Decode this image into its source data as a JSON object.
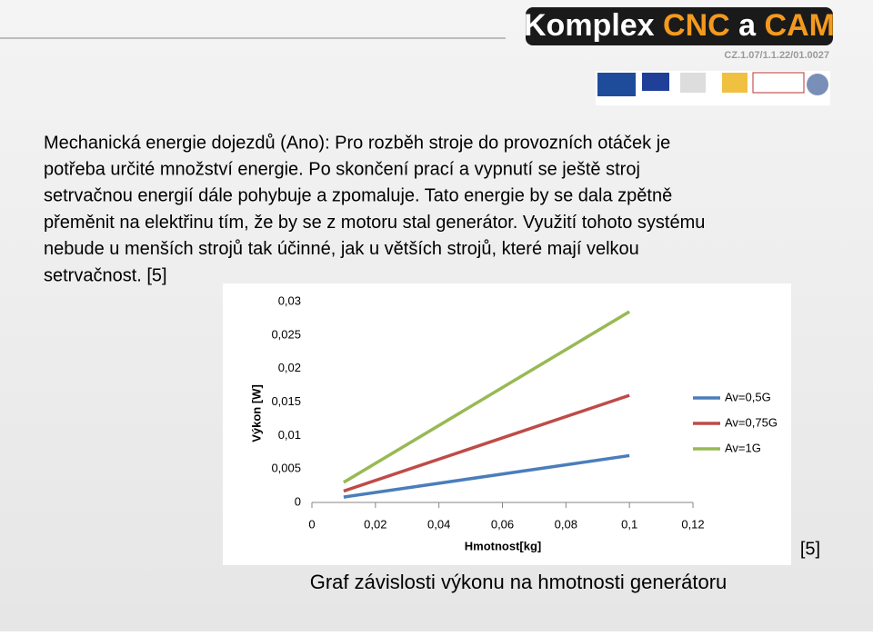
{
  "header": {
    "logo": [
      "Komplex",
      "CNC",
      "a",
      "CAM"
    ],
    "code": "CZ.1.07/1.1.22/01.0027"
  },
  "body": [
    "Mechanická energie dojezdů  (Ano):  Pro rozběh stroje do provozních otáček je",
    "potřeba určité množství energie. Po skončení prací a vypnutí se ještě stroj",
    "setrvačnou  energií  dále pohybuje a zpomaluje. Tato energie by se dala zpětně",
    "přeměnit na elektřinu tím, že by se z motoru stal generátor. Využití tohoto systému",
    "nebude u menších strojů tak účinné, jak u větších strojů, které mají velkou",
    "setrvačnost. [5]"
  ],
  "chart_data": {
    "type": "line",
    "x_label": "Hmotnost[kg]",
    "y_label": "Výkon [W]",
    "x": [
      0.01,
      0.1
    ],
    "series": [
      {
        "name": "Av=0,5G",
        "color": "#4a7ebb",
        "values": [
          0.0008,
          0.007
        ]
      },
      {
        "name": "Av=0,75G",
        "color": "#be4b48",
        "values": [
          0.0017,
          0.016
        ]
      },
      {
        "name": "Av=1G",
        "color": "#98b954",
        "values": [
          0.003,
          0.0285
        ]
      }
    ],
    "xlim": [
      0,
      0.12
    ],
    "xticks": [
      0,
      {
        "value": 0.02,
        "label": "0,02"
      },
      {
        "value": 0.04,
        "label": "0,04"
      },
      {
        "value": 0.06,
        "label": "0,06"
      },
      {
        "value": 0.08,
        "label": "0,08"
      },
      {
        "value": 0.1,
        "label": "0,1"
      },
      {
        "value": 0.12,
        "label": "0,12"
      }
    ],
    "ylim": [
      0,
      0.03
    ],
    "yticks": [
      0,
      {
        "value": 0.005,
        "label": "0,005"
      },
      {
        "value": 0.01,
        "label": "0,01"
      },
      {
        "value": 0.015,
        "label": "0,015"
      },
      {
        "value": 0.02,
        "label": "0,02"
      },
      {
        "value": 0.025,
        "label": "0,025"
      },
      {
        "value": 0.03,
        "label": "0,03"
      }
    ],
    "legend": "right"
  },
  "caption": "Graf závislosti výkonu na hmotnosti generátoru",
  "source": "[5]"
}
